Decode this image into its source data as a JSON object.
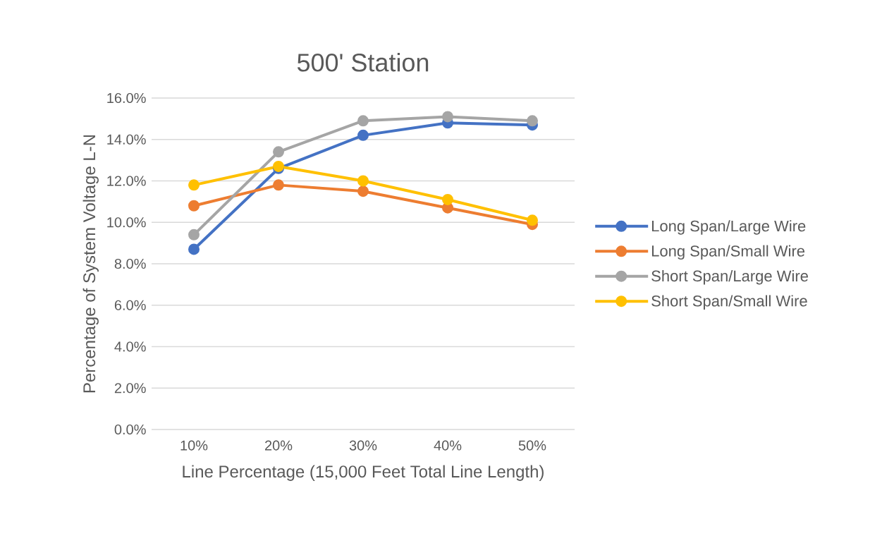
{
  "chart_data": {
    "type": "line",
    "title": "500' Station",
    "xlabel": "Line Percentage (15,000 Feet Total Line Length)",
    "ylabel": "Percentage of System Voltage L-N",
    "categories": [
      "10%",
      "20%",
      "30%",
      "40%",
      "50%"
    ],
    "series": [
      {
        "name": "Long Span/Large Wire",
        "color": "#4472c4",
        "values": [
          8.7,
          12.6,
          14.2,
          14.8,
          14.7
        ]
      },
      {
        "name": "Long Span/Small Wire",
        "color": "#ed7d31",
        "values": [
          10.8,
          11.8,
          11.5,
          10.7,
          9.9
        ]
      },
      {
        "name": "Short Span/Large Wire",
        "color": "#a5a5a5",
        "values": [
          9.4,
          13.4,
          14.9,
          15.1,
          14.9
        ]
      },
      {
        "name": "Short Span/Small Wire",
        "color": "#ffc000",
        "values": [
          11.8,
          12.7,
          12.0,
          11.1,
          10.1
        ]
      }
    ],
    "ylim": [
      0,
      16
    ],
    "yticks": [
      {
        "value": 0,
        "label": "0.0%"
      },
      {
        "value": 2,
        "label": "2.0%"
      },
      {
        "value": 4,
        "label": "4.0%"
      },
      {
        "value": 6,
        "label": "6.0%"
      },
      {
        "value": 8,
        "label": "8.0%"
      },
      {
        "value": 10,
        "label": "10.0%"
      },
      {
        "value": 12,
        "label": "12.0%"
      },
      {
        "value": 14,
        "label": "14.0%"
      },
      {
        "value": 16,
        "label": "16.0%"
      }
    ],
    "grid": "y",
    "legend": "right",
    "marker": "circle",
    "line_style": "solid"
  }
}
